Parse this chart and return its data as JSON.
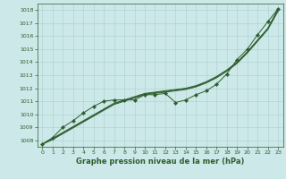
{
  "xlabel": "Graphe pression niveau de la mer (hPa)",
  "xlim": [
    -0.5,
    23.5
  ],
  "ylim": [
    1007.5,
    1018.5
  ],
  "yticks": [
    1008,
    1009,
    1010,
    1011,
    1012,
    1013,
    1014,
    1015,
    1016,
    1017,
    1018
  ],
  "xticks": [
    0,
    1,
    2,
    3,
    4,
    5,
    6,
    7,
    8,
    9,
    10,
    11,
    12,
    13,
    14,
    15,
    16,
    17,
    18,
    19,
    20,
    21,
    22,
    23
  ],
  "background_color": "#cce8e8",
  "line_color": "#2e5e2e",
  "grid_color": "#b0d4d4",
  "lines": {
    "line_straight1": [
      1007.7,
      1008.15,
      1008.6,
      1009.05,
      1009.5,
      1009.95,
      1010.4,
      1010.85,
      1011.1,
      1011.35,
      1011.6,
      1011.7,
      1011.8,
      1011.9,
      1012.0,
      1012.2,
      1012.5,
      1012.9,
      1013.4,
      1014.0,
      1014.8,
      1015.7,
      1016.6,
      1018.1
    ],
    "line_straight2": [
      1007.7,
      1008.1,
      1008.55,
      1009.0,
      1009.45,
      1009.9,
      1010.35,
      1010.8,
      1011.05,
      1011.3,
      1011.55,
      1011.65,
      1011.75,
      1011.85,
      1011.95,
      1012.15,
      1012.45,
      1012.85,
      1013.35,
      1013.95,
      1014.75,
      1015.65,
      1016.55,
      1018.0
    ],
    "line_straight3": [
      1007.7,
      1008.05,
      1008.5,
      1008.95,
      1009.4,
      1009.85,
      1010.3,
      1010.75,
      1011.0,
      1011.25,
      1011.5,
      1011.6,
      1011.7,
      1011.8,
      1011.9,
      1012.1,
      1012.4,
      1012.8,
      1013.3,
      1013.9,
      1014.7,
      1015.6,
      1016.5,
      1017.9
    ],
    "line_data": [
      1007.7,
      1008.2,
      1009.0,
      1009.5,
      1010.1,
      1010.6,
      1011.0,
      1011.1,
      1011.1,
      1011.1,
      1011.5,
      1011.5,
      1011.6,
      1010.9,
      1011.1,
      1011.5,
      1011.8,
      1012.3,
      1013.1,
      1014.2,
      1015.0,
      1016.1,
      1017.1,
      1018.1
    ]
  },
  "xlabel_fontsize": 6.0,
  "tick_fontsize": 4.5,
  "linewidth": 0.7,
  "marker_size": 2.2
}
